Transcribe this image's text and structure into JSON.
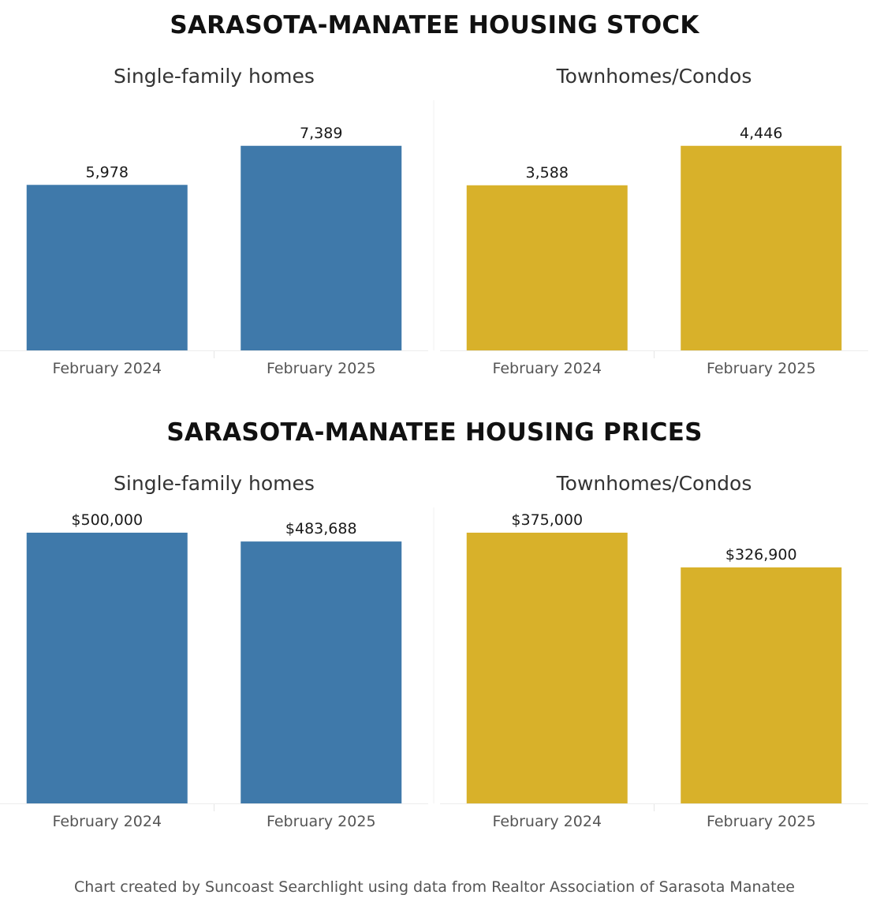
{
  "colors": {
    "single_family": "#3f79aa",
    "townhome": "#d8b12a"
  },
  "sections": [
    {
      "title": "SARASOTA-MANATEE HOUSING STOCK"
    },
    {
      "title": "SARASOTA-MANATEE HOUSING PRICES"
    }
  ],
  "footer": "Chart created by Suncoast Searchlight using data from Realtor Association of Sarasota Manatee",
  "chart_data": [
    {
      "type": "bar",
      "title": "Single-family homes",
      "categories": [
        "February 2024",
        "February 2025"
      ],
      "values": [
        5978,
        7389
      ],
      "labels": [
        "5,978",
        "7,389"
      ],
      "ylim": [
        0,
        8750
      ],
      "color_key": "single_family"
    },
    {
      "type": "bar",
      "title": "Townhomes/Condos",
      "categories": [
        "February 2024",
        "February 2025"
      ],
      "values": [
        3588,
        4446
      ],
      "labels": [
        "3,588",
        "4,446"
      ],
      "ylim": [
        0,
        5265
      ],
      "color_key": "townhome"
    },
    {
      "type": "bar",
      "title": "Single-family homes",
      "categories": [
        "February 2024",
        "February 2025"
      ],
      "values": [
        500000,
        483688
      ],
      "labels": [
        "$500,000",
        "$483,688"
      ],
      "ylim": [
        0,
        532000
      ],
      "color_key": "single_family"
    },
    {
      "type": "bar",
      "title": "Townhomes/Condos",
      "categories": [
        "February 2024",
        "February 2025"
      ],
      "values": [
        375000,
        326900
      ],
      "labels": [
        "$375,000",
        "$326,900"
      ],
      "ylim": [
        0,
        399000
      ],
      "color_key": "townhome"
    }
  ]
}
